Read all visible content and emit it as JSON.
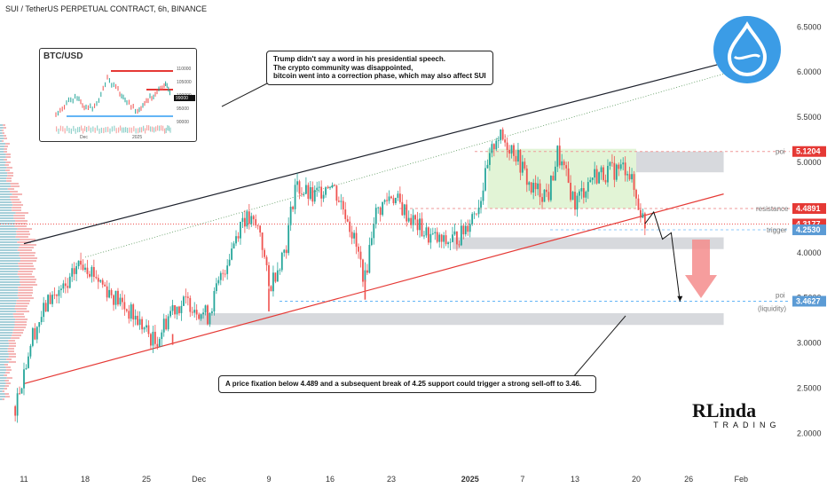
{
  "header": {
    "title": "SUI / TetherUS PERPETUAL CONTRACT, 6h, BINANCE"
  },
  "annotations": {
    "top_lines": [
      "Trump didn't say a word in his presidential speech.",
      "The crypto community was disappointed,",
      "bitcoin went into a correction phase, which may also affect SUI"
    ],
    "bottom": "A price fixation below 4.489 and a subsequent break of 4.25 support could trigger a strong sell-off to 3.46."
  },
  "inset": {
    "title": "BTC/USD",
    "xlabels": [
      "Dec",
      "2025"
    ],
    "yticks": [
      "110000",
      "105000",
      "100000",
      "95000",
      "90000"
    ],
    "badge": "99000"
  },
  "levels": {
    "poi_top": {
      "text": "poi",
      "value": "5.1204"
    },
    "resistance": {
      "text": "resistance",
      "value": "4.4891"
    },
    "current": {
      "value": "4.3177"
    },
    "trigger": {
      "text": "trigger",
      "value": "4.2530"
    },
    "poi_bottom": {
      "text": "poi",
      "sub": "(liquidity)",
      "value": "3.4627"
    }
  },
  "brand": {
    "logo_top": "RLinda",
    "logo_bottom": "TRADING"
  },
  "colors": {
    "up": "#26a69a",
    "down": "#ef5350",
    "channel_top": "#1e222d",
    "channel_bottom": "#e53935",
    "zone_green": "#d8f0c8",
    "zone_gray": "#c9ccd1",
    "level_label": "#e53935",
    "trigger_label": "#5b9bd5",
    "arrow_red": "#f48c8c",
    "logo": "#3b9ce6"
  },
  "chart_data": {
    "type": "candlestick",
    "title": "SUI / TetherUS PERPETUAL CONTRACT, 6h, BINANCE",
    "x_tick_labels": [
      "11",
      "18",
      "25",
      "Dec",
      "9",
      "16",
      "23",
      "2025",
      "7",
      "13",
      "20",
      "26",
      "Feb"
    ],
    "x_tick_dates": [
      "2024-11-11",
      "2024-11-18",
      "2024-11-25",
      "2024-12-01",
      "2024-12-09",
      "2024-12-16",
      "2024-12-23",
      "2025-01-01",
      "2025-01-07",
      "2025-01-13",
      "2025-01-20",
      "2025-01-26",
      "2025-02-01"
    ],
    "y_tick_labels": [
      "6.5000",
      "6.0000",
      "5.5000",
      "5.0000",
      "4.5000",
      "4.0000",
      "3.5000",
      "3.0000",
      "2.5000",
      "2.0000"
    ],
    "ylim": [
      1.6,
      6.7
    ],
    "price_path": [
      [
        "2024-11-10",
        2.3
      ],
      [
        "2024-11-12",
        3.1
      ],
      [
        "2024-11-14",
        3.5
      ],
      [
        "2024-11-16",
        3.6
      ],
      [
        "2024-11-17",
        3.85
      ],
      [
        "2024-11-18",
        3.9
      ],
      [
        "2024-11-20",
        3.65
      ],
      [
        "2024-11-22",
        3.45
      ],
      [
        "2024-11-24",
        3.25
      ],
      [
        "2024-11-26",
        3.0
      ],
      [
        "2024-11-28",
        3.4
      ],
      [
        "2024-11-30",
        3.45
      ],
      [
        "2024-12-02",
        3.3
      ],
      [
        "2024-12-04",
        3.85
      ],
      [
        "2024-12-06",
        4.4
      ],
      [
        "2024-12-08",
        4.25
      ],
      [
        "2024-12-09",
        3.6
      ],
      [
        "2024-12-11",
        4.1
      ],
      [
        "2024-12-12",
        4.75
      ],
      [
        "2024-12-14",
        4.6
      ],
      [
        "2024-12-16",
        4.8
      ],
      [
        "2024-12-18",
        4.4
      ],
      [
        "2024-12-20",
        3.7
      ],
      [
        "2024-12-21",
        4.4
      ],
      [
        "2024-12-23",
        4.65
      ],
      [
        "2024-12-25",
        4.4
      ],
      [
        "2024-12-27",
        4.2
      ],
      [
        "2024-12-29",
        4.1
      ],
      [
        "2024-12-31",
        4.2
      ],
      [
        "2025-01-02",
        4.55
      ],
      [
        "2025-01-04",
        5.3
      ],
      [
        "2025-01-06",
        5.15
      ],
      [
        "2025-01-08",
        4.7
      ],
      [
        "2025-01-10",
        4.65
      ],
      [
        "2025-01-11",
        5.1
      ],
      [
        "2025-01-13",
        4.55
      ],
      [
        "2025-01-15",
        4.85
      ],
      [
        "2025-01-17",
        4.9
      ],
      [
        "2025-01-19",
        4.95
      ],
      [
        "2025-01-20",
        4.6
      ],
      [
        "2025-01-21",
        4.32
      ]
    ],
    "channel_upper": [
      [
        "2024-11-11",
        4.1
      ],
      [
        "2025-01-30",
        6.1
      ]
    ],
    "channel_lower": [
      [
        "2024-11-11",
        2.55
      ],
      [
        "2025-01-30",
        4.65
      ]
    ],
    "levels": [
      5.1204,
      4.4891,
      4.3177,
      4.253,
      3.4627
    ],
    "zones": [
      {
        "label": "accumulation",
        "x": [
          "2025-01-03",
          "2025-01-20"
        ],
        "y": [
          4.49,
          5.15
        ]
      },
      {
        "label": "poi",
        "x": [
          "2025-01-20",
          "2025-01-30"
        ],
        "y": [
          4.89,
          5.12
        ]
      },
      {
        "label": "trigger",
        "x": [
          "2024-12-30",
          "2025-01-30"
        ],
        "y": [
          4.04,
          4.17
        ]
      },
      {
        "label": "liquidity",
        "x": [
          "2024-12-01",
          "2025-01-30"
        ],
        "y": [
          3.2,
          3.33
        ]
      }
    ],
    "projection": [
      [
        "2025-01-21",
        4.32
      ],
      [
        "2025-01-22",
        4.45
      ],
      [
        "2025-01-23",
        4.15
      ],
      [
        "2025-01-24",
        4.22
      ],
      [
        "2025-01-25",
        3.46
      ]
    ]
  }
}
